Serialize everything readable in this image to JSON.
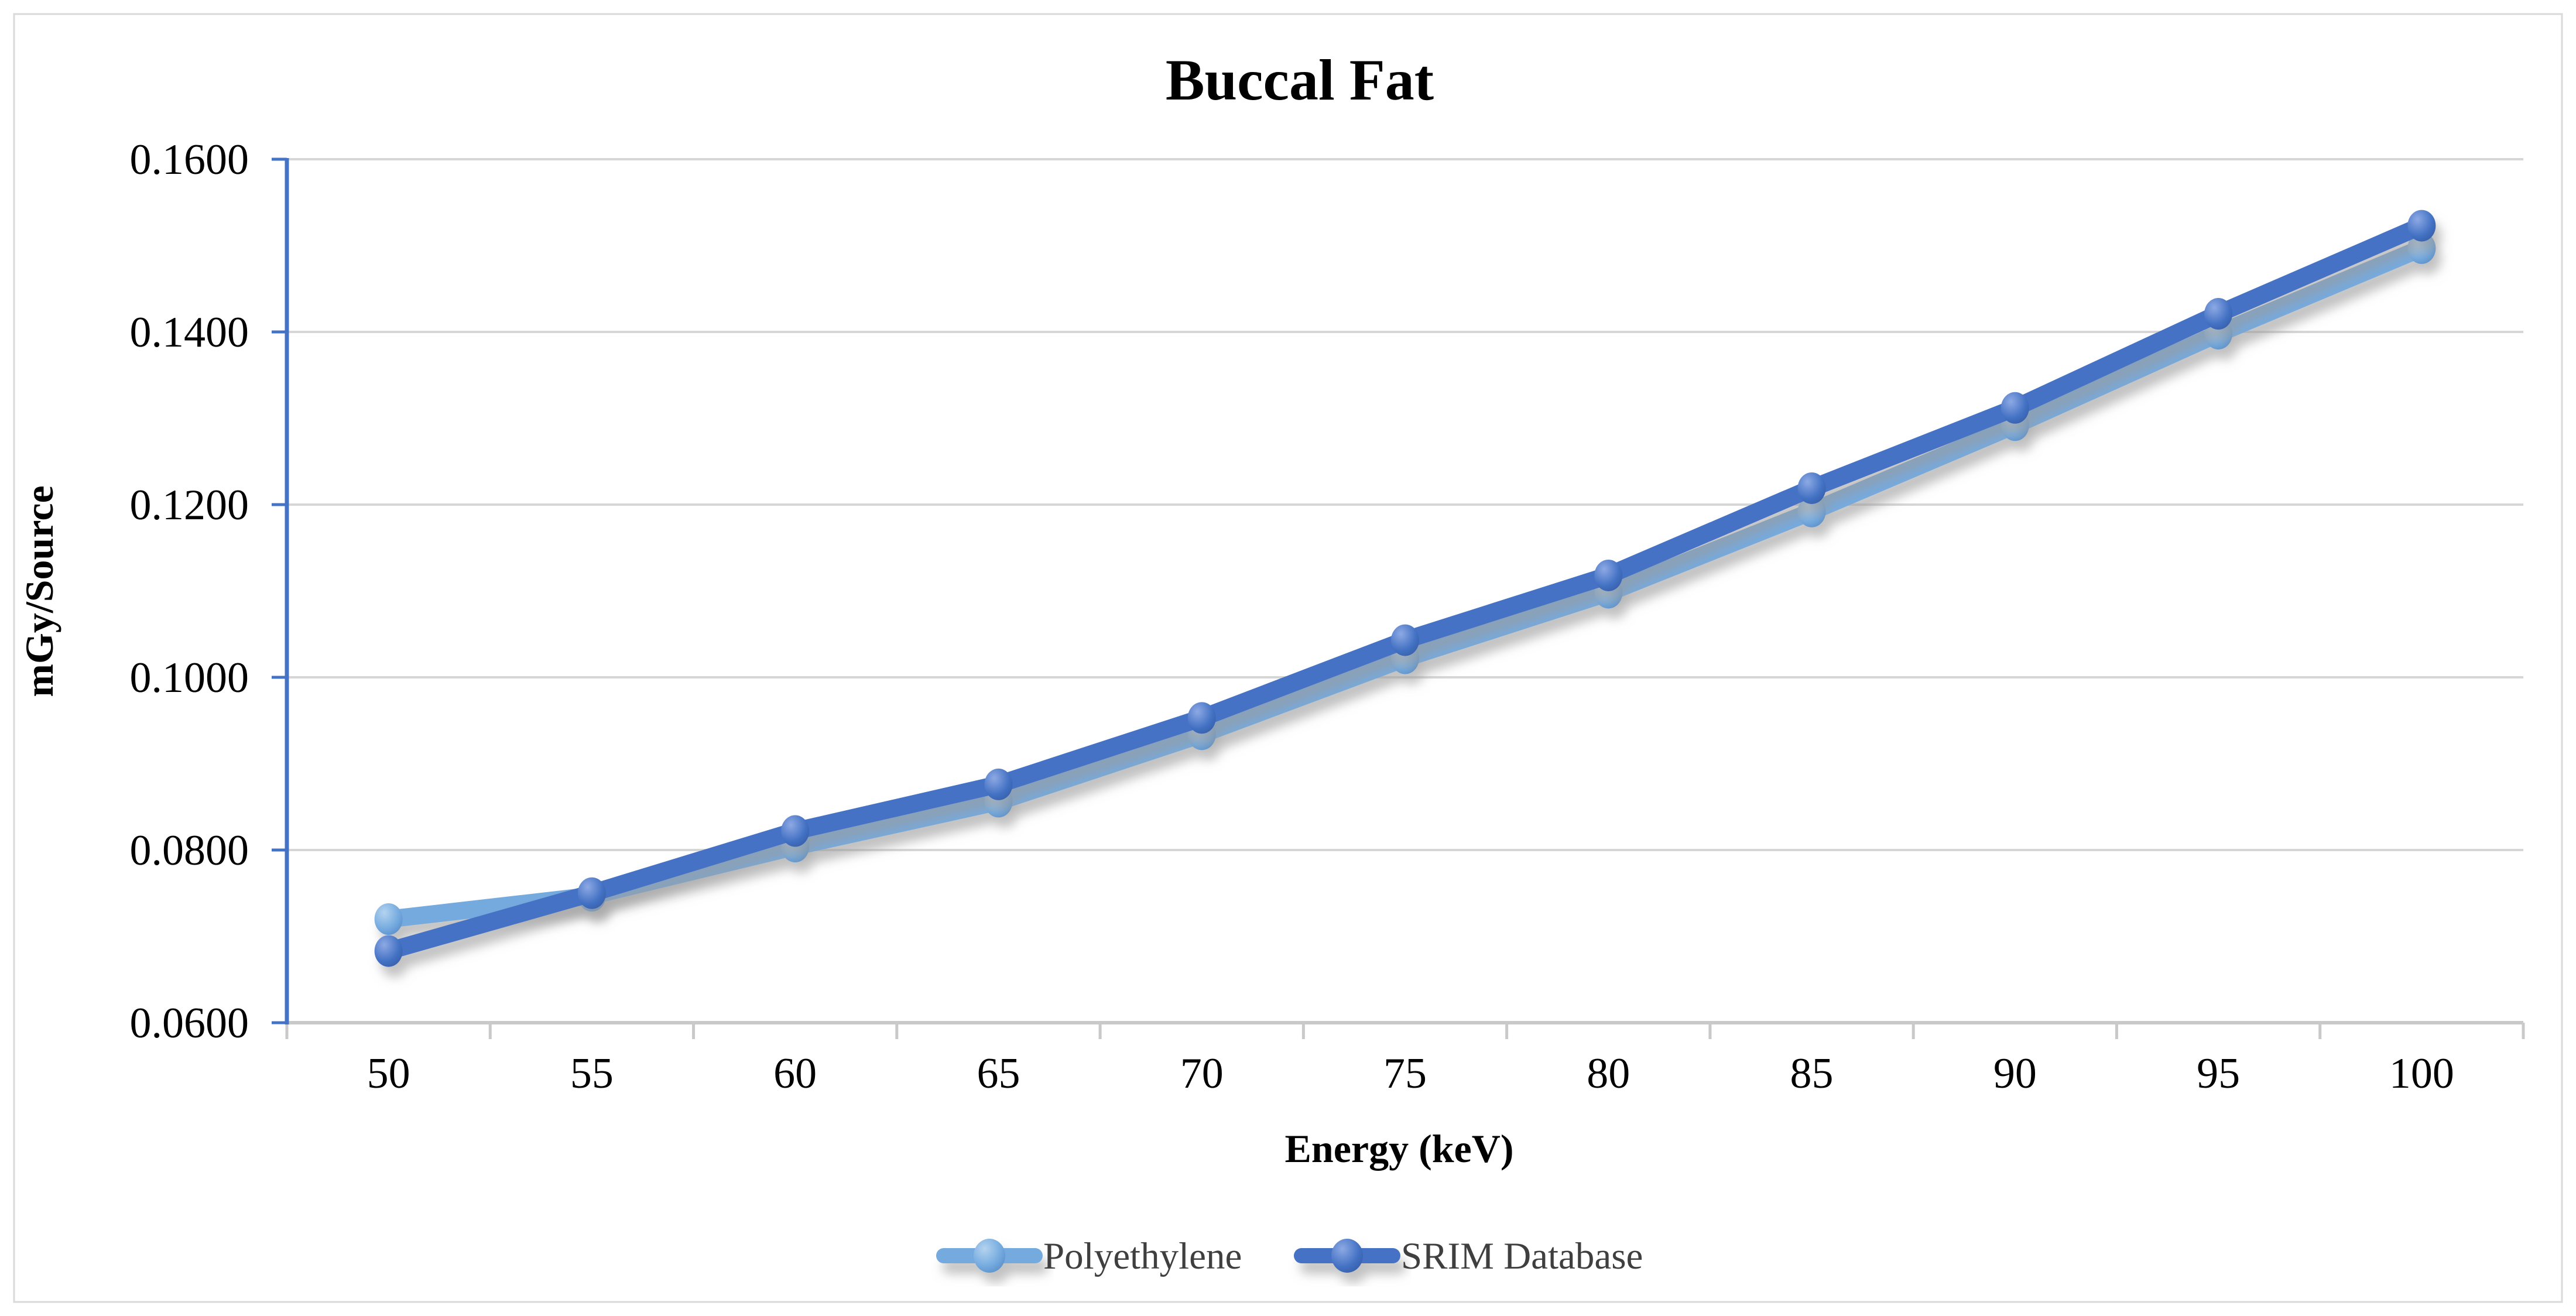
{
  "chart_data": {
    "type": "line",
    "title": "Buccal Fat",
    "xlabel": "Energy (keV)",
    "ylabel": "mGy/Source",
    "x": [
      50,
      55,
      60,
      65,
      70,
      75,
      80,
      85,
      90,
      95,
      100
    ],
    "series": [
      {
        "name": "Polyethylene",
        "color": "#74AADF",
        "marker": "circle",
        "values": [
          0.072,
          0.0747,
          0.0804,
          0.0856,
          0.0934,
          0.1022,
          0.1098,
          0.1192,
          0.1292,
          0.1398,
          0.1497
        ]
      },
      {
        "name": "SRIM Database",
        "color": "#4472C4",
        "marker": "circle",
        "values": [
          0.0683,
          0.075,
          0.0822,
          0.0876,
          0.0953,
          0.1043,
          0.1118,
          0.1219,
          0.1312,
          0.1421,
          0.1523
        ]
      }
    ],
    "ylim": [
      0.06,
      0.16
    ],
    "ytick_step": 0.02,
    "ytick_labels": [
      "0.0600",
      "0.0800",
      "0.1000",
      "0.1200",
      "0.1400",
      "0.1600"
    ],
    "xtick_labels": [
      "50",
      "55",
      "60",
      "65",
      "70",
      "75",
      "80",
      "85",
      "90",
      "95",
      "100"
    ],
    "grid": true,
    "legend_position": "bottom"
  },
  "colors": {
    "y_axis": "#4472C4",
    "x_axis": "#C9C9C9",
    "gridline": "#D6D6D6",
    "chart_border": "#D9D9D9",
    "tick_label_text": "#000000",
    "legend_text": "#3F3F3F",
    "background": "#FFFFFF"
  }
}
